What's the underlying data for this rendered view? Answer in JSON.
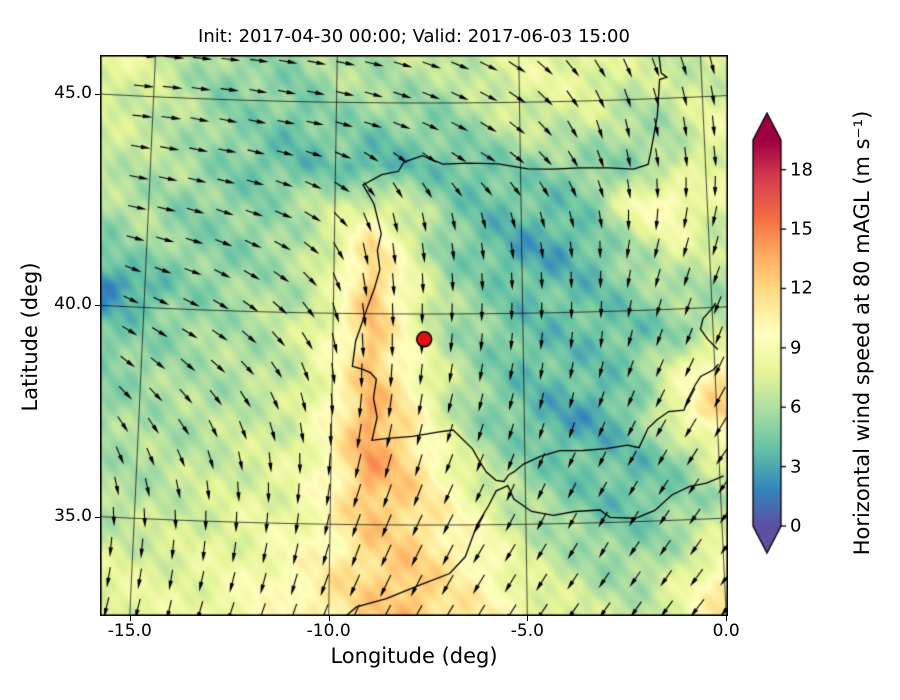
{
  "chart_data": {
    "type": "heatmap",
    "title": "Init: 2017-04-30 00:00; Valid: 2017-06-03 15:00",
    "xlabel": "Longitude (deg)",
    "ylabel": "Latitude (deg)",
    "x_ticks": [
      {
        "value": -15,
        "label": "-15.0"
      },
      {
        "value": -10,
        "label": "-10.0"
      },
      {
        "value": -5,
        "label": "-5.0"
      },
      {
        "value": 0,
        "label": "0.0"
      }
    ],
    "y_ticks": [
      {
        "value": 45,
        "label": "45.0"
      },
      {
        "value": 40,
        "label": "40.0"
      },
      {
        "value": 35,
        "label": "35.0"
      }
    ],
    "grid_lines": {
      "lons": [
        -15,
        -10,
        -5,
        0
      ],
      "lats": [
        35,
        40,
        45
      ]
    },
    "colorbar": {
      "label": "Horizontal wind speed at 80 mAGL (m s⁻¹)",
      "ticks": [
        0,
        3,
        6,
        9,
        12,
        15,
        18
      ],
      "vmin": 0,
      "vmax": 19.5,
      "extend": "both",
      "colormap": "Spectral_r",
      "colormap_stops": [
        "#5e4fa2",
        "#3288bd",
        "#66c2a5",
        "#abdda4",
        "#e6f598",
        "#ffffbf",
        "#fee08b",
        "#fdae61",
        "#f46d43",
        "#d53e4f",
        "#9e0142"
      ],
      "under_color": "#5e4fa2",
      "over_color": "#9e0142"
    },
    "lon_range": [
      -16.2,
      0.1
    ],
    "lat_range": [
      32.8,
      46.1
    ],
    "grid_lons": [
      -16,
      -15,
      -14,
      -13,
      -12,
      -11,
      -10,
      -9,
      -8,
      -7,
      -6,
      -5,
      -4,
      -3,
      -2,
      -1,
      0
    ],
    "grid_lats": [
      46.5,
      45.5,
      44.5,
      43.5,
      42.5,
      41.5,
      40.5,
      39.5,
      38.5,
      37.5,
      36.5,
      35.5,
      34.5,
      33.5,
      32.5
    ],
    "wind_speed": [
      [
        9,
        8,
        7,
        6,
        6,
        6,
        6,
        6,
        7,
        7,
        7,
        8,
        8,
        8,
        8,
        7,
        7
      ],
      [
        8,
        7,
        6,
        5,
        5,
        5,
        6,
        6,
        6,
        6,
        7,
        8,
        8,
        8,
        7,
        7,
        7
      ],
      [
        7,
        7,
        6,
        5,
        5,
        4,
        5,
        5,
        5,
        5,
        6,
        7,
        7,
        7,
        6,
        6,
        8
      ],
      [
        7,
        6,
        6,
        5,
        4,
        4,
        4,
        3,
        4,
        4,
        4,
        5,
        5,
        5,
        5,
        6,
        8
      ],
      [
        6,
        6,
        5,
        5,
        5,
        6,
        7,
        8,
        7,
        5,
        4,
        4,
        4,
        5,
        9,
        10,
        8
      ],
      [
        5,
        6,
        5,
        5,
        5,
        6,
        8,
        12,
        8,
        5,
        4,
        3,
        3,
        4,
        6,
        8,
        7
      ],
      [
        2,
        3,
        5,
        5,
        6,
        6,
        8,
        13,
        9,
        6,
        5,
        4,
        4,
        4,
        5,
        6,
        6
      ],
      [
        4,
        5,
        5,
        6,
        6,
        7,
        9,
        13,
        9,
        6,
        5,
        4,
        4,
        4,
        4,
        5,
        6
      ],
      [
        5,
        5,
        6,
        6,
        6,
        7,
        9,
        13,
        10,
        7,
        5,
        4,
        4,
        4,
        5,
        8,
        11
      ],
      [
        5,
        6,
        6,
        6,
        7,
        7,
        10,
        14,
        11,
        7,
        5,
        4,
        3,
        3,
        5,
        9,
        12
      ],
      [
        6,
        6,
        6,
        7,
        7,
        8,
        10,
        14,
        12,
        9,
        6,
        5,
        4,
        4,
        4,
        5,
        8
      ],
      [
        6,
        6,
        7,
        7,
        8,
        8,
        10,
        13,
        12,
        10,
        8,
        6,
        5,
        4,
        4,
        5,
        6
      ],
      [
        7,
        7,
        7,
        8,
        8,
        9,
        10,
        12,
        12,
        11,
        9,
        7,
        6,
        5,
        5,
        6,
        8
      ],
      [
        8,
        8,
        8,
        8,
        9,
        10,
        11,
        12,
        13,
        11,
        10,
        8,
        7,
        6,
        6,
        8,
        11
      ],
      [
        8,
        8,
        8,
        9,
        9,
        10,
        11,
        12,
        13,
        12,
        11,
        9,
        8,
        7,
        7,
        9,
        12
      ]
    ],
    "wind_u": [
      [
        1,
        1,
        1,
        1,
        1,
        1,
        1,
        1,
        1,
        0.9,
        0.8,
        0.7,
        0.6,
        0.5,
        0.4,
        0.3,
        0.3
      ],
      [
        1,
        1,
        1,
        1,
        1,
        1,
        1,
        1,
        0.9,
        0.9,
        0.8,
        0.7,
        0.5,
        0.4,
        0.3,
        0.3,
        0.2
      ],
      [
        1,
        1,
        1,
        1,
        1,
        1,
        1,
        0.9,
        0.9,
        0.8,
        0.8,
        0.7,
        0.5,
        0.3,
        0.2,
        0.2,
        0.1
      ],
      [
        1,
        1,
        1,
        1,
        1,
        0.9,
        0.8,
        0.6,
        0.6,
        0.7,
        0.8,
        0.7,
        0.6,
        0.4,
        0.2,
        0.1,
        0.1
      ],
      [
        1,
        1,
        1,
        0.9,
        0.9,
        0.8,
        0.6,
        0.3,
        0.2,
        0.2,
        0.3,
        0.3,
        0.3,
        0.2,
        0,
        -0.1,
        -0.2
      ],
      [
        1,
        1,
        1,
        0.9,
        0.8,
        0.7,
        0.4,
        0.1,
        0.1,
        0.1,
        0.1,
        0.1,
        0.1,
        0,
        -0.2,
        -0.3,
        -0.3
      ],
      [
        0.9,
        0.9,
        0.9,
        0.8,
        0.7,
        0.6,
        0.3,
        0.1,
        0,
        0,
        0,
        0,
        0,
        0,
        -0.2,
        -0.3,
        -0.4
      ],
      [
        0.8,
        0.8,
        0.8,
        0.7,
        0.6,
        0.5,
        0.2,
        0,
        0,
        -0.1,
        -0.1,
        -0.1,
        -0.1,
        -0.1,
        -0.3,
        -0.4,
        -0.4
      ],
      [
        0.7,
        0.7,
        0.6,
        0.6,
        0.5,
        0.3,
        0.1,
        -0.1,
        -0.1,
        -0.2,
        -0.2,
        -0.2,
        -0.2,
        -0.3,
        -0.4,
        -0.5,
        -0.5
      ],
      [
        0.5,
        0.5,
        0.5,
        0.4,
        0.3,
        0.2,
        0,
        -0.2,
        -0.2,
        -0.3,
        -0.3,
        -0.3,
        -0.3,
        -0.4,
        -0.5,
        -0.6,
        -0.6
      ],
      [
        0.3,
        0.3,
        0.3,
        0.2,
        0.1,
        0,
        -0.1,
        -0.3,
        -0.3,
        -0.4,
        -0.4,
        -0.4,
        -0.5,
        -0.5,
        -0.6,
        -0.6,
        -0.7
      ],
      [
        0.1,
        0.1,
        0.1,
        0,
        0,
        -0.1,
        -0.2,
        -0.4,
        -0.4,
        -0.5,
        -0.5,
        -0.5,
        -0.5,
        -0.6,
        -0.6,
        -0.7,
        -0.7
      ],
      [
        -0.1,
        -0.1,
        -0.1,
        -0.1,
        -0.2,
        -0.2,
        -0.3,
        -0.4,
        -0.5,
        -0.5,
        -0.6,
        -0.6,
        -0.6,
        -0.6,
        -0.7,
        -0.7,
        -0.7
      ],
      [
        -0.2,
        -0.2,
        -0.2,
        -0.3,
        -0.3,
        -0.3,
        -0.4,
        -0.5,
        -0.5,
        -0.6,
        -0.6,
        -0.6,
        -0.7,
        -0.7,
        -0.7,
        -0.7,
        -0.8
      ],
      [
        -0.3,
        -0.3,
        -0.3,
        -0.3,
        -0.4,
        -0.4,
        -0.4,
        -0.5,
        -0.6,
        -0.6,
        -0.6,
        -0.7,
        -0.7,
        -0.7,
        -0.7,
        -0.8,
        -0.8
      ]
    ],
    "wind_v": [
      [
        -0.1,
        -0.1,
        -0.1,
        -0.1,
        -0.1,
        -0.2,
        -0.2,
        -0.2,
        -0.3,
        -0.3,
        -0.4,
        -0.5,
        -0.6,
        -0.7,
        -0.8,
        -0.9,
        -0.9
      ],
      [
        -0.1,
        -0.1,
        -0.1,
        -0.1,
        -0.2,
        -0.2,
        -0.2,
        -0.3,
        -0.3,
        -0.4,
        -0.4,
        -0.5,
        -0.6,
        -0.7,
        -0.8,
        -0.9,
        -1
      ],
      [
        -0.1,
        -0.1,
        -0.2,
        -0.2,
        -0.2,
        -0.2,
        -0.3,
        -0.3,
        -0.4,
        -0.4,
        -0.5,
        -0.6,
        -0.7,
        -0.9,
        -1,
        -1,
        -1
      ],
      [
        -0.2,
        -0.2,
        -0.2,
        -0.2,
        -0.3,
        -0.3,
        -0.4,
        -0.6,
        -0.6,
        -0.5,
        -0.5,
        -0.6,
        -0.8,
        -1,
        -1,
        -1,
        -1
      ],
      [
        -0.2,
        -0.2,
        -0.3,
        -0.3,
        -0.3,
        -0.4,
        -0.6,
        -0.9,
        -1,
        -1,
        -1,
        -1,
        -1,
        -1,
        -1,
        -1,
        -1
      ],
      [
        -0.3,
        -0.3,
        -0.3,
        -0.4,
        -0.4,
        -0.5,
        -0.8,
        -1,
        -1,
        -1,
        -1,
        -1,
        -1,
        -1,
        -1,
        -1,
        -1
      ],
      [
        -0.4,
        -0.4,
        -0.4,
        -0.5,
        -0.5,
        -0.6,
        -0.9,
        -1,
        -1,
        -1,
        -1,
        -1,
        -1,
        -1,
        -1,
        -1,
        -1
      ],
      [
        -0.5,
        -0.5,
        -0.5,
        -0.5,
        -0.6,
        -0.7,
        -0.9,
        -1,
        -1,
        -1,
        -1,
        -1,
        -1,
        -1,
        -1,
        -1,
        -1
      ],
      [
        -0.6,
        -0.6,
        -0.6,
        -0.6,
        -0.7,
        -0.8,
        -1,
        -1,
        -1,
        -1,
        -1,
        -1,
        -1,
        -1,
        -1,
        -1,
        -1
      ],
      [
        -0.7,
        -0.7,
        -0.7,
        -0.8,
        -0.8,
        -0.9,
        -1,
        -1,
        -1,
        -1,
        -1,
        -1,
        -1,
        -1,
        -1,
        -1,
        -1
      ],
      [
        -0.8,
        -0.8,
        -0.8,
        -0.9,
        -0.9,
        -1,
        -1,
        -1,
        -1,
        -1,
        -1,
        -1,
        -1,
        -1,
        -1,
        -1,
        -1
      ],
      [
        -1,
        -1,
        -1,
        -1,
        -1,
        -1,
        -1,
        -1,
        -1,
        -1,
        -1,
        -1,
        -1,
        -1,
        -1,
        -1,
        -1
      ],
      [
        -1,
        -1,
        -1,
        -1,
        -1,
        -1,
        -1,
        -1,
        -1,
        -1,
        -1,
        -1,
        -1,
        -1,
        -1,
        -1,
        -1
      ],
      [
        -1,
        -1,
        -1,
        -1,
        -1,
        -1,
        -1,
        -1,
        -1,
        -1,
        -1,
        -1,
        -1,
        -1,
        -1,
        -1,
        -1
      ],
      [
        -1,
        -1,
        -1,
        -1,
        -1,
        -1,
        -1,
        -1,
        -1,
        -1,
        -1,
        -1,
        -1,
        -1,
        -1,
        -1,
        -1
      ]
    ],
    "noise_amplitude": 1.3,
    "marker": {
      "lon": -7.6,
      "lat": 39.4,
      "color": "#e01111"
    },
    "coastlines": [
      [
        [
          -1.15,
          46.1
        ],
        [
          -1.1,
          45.6
        ],
        [
          -0.95,
          45.5
        ],
        [
          -1.15,
          45.45
        ],
        [
          -1.25,
          44.6
        ],
        [
          -1.45,
          43.8
        ],
        [
          -1.55,
          43.45
        ],
        [
          -1.95,
          43.35
        ],
        [
          -2.6,
          43.4
        ],
        [
          -3.4,
          43.42
        ],
        [
          -4.1,
          43.4
        ],
        [
          -4.8,
          43.42
        ],
        [
          -5.6,
          43.55
        ],
        [
          -6.4,
          43.57
        ],
        [
          -7.1,
          43.55
        ],
        [
          -7.65,
          43.75
        ],
        [
          -8.15,
          43.6
        ],
        [
          -8.3,
          43.38
        ],
        [
          -8.75,
          43.3
        ],
        [
          -9.25,
          43.05
        ],
        [
          -8.95,
          42.6
        ],
        [
          -8.85,
          42.25
        ],
        [
          -8.75,
          41.9
        ],
        [
          -8.85,
          41.5
        ],
        [
          -8.78,
          41.05
        ],
        [
          -8.92,
          40.6
        ],
        [
          -9.1,
          40.15
        ],
        [
          -9.4,
          39.35
        ],
        [
          -9.48,
          38.75
        ],
        [
          -9.2,
          38.68
        ],
        [
          -9.0,
          38.6
        ],
        [
          -8.85,
          38.45
        ],
        [
          -8.92,
          38.0
        ],
        [
          -8.82,
          37.55
        ],
        [
          -8.95,
          37.0
        ],
        [
          -8.55,
          37.05
        ],
        [
          -7.9,
          37.1
        ],
        [
          -7.25,
          37.2
        ],
        [
          -6.85,
          37.25
        ],
        [
          -6.35,
          36.8
        ],
        [
          -6.2,
          36.55
        ],
        [
          -6.0,
          36.25
        ],
        [
          -5.75,
          36.05
        ],
        [
          -5.55,
          36.02
        ],
        [
          -5.42,
          36.18
        ],
        [
          -5.28,
          36.25
        ],
        [
          -5.05,
          36.42
        ],
        [
          -4.6,
          36.6
        ],
        [
          -4.1,
          36.73
        ],
        [
          -3.5,
          36.72
        ],
        [
          -2.9,
          36.75
        ],
        [
          -2.35,
          36.82
        ],
        [
          -2.05,
          36.75
        ],
        [
          -1.8,
          37.2
        ],
        [
          -1.55,
          37.4
        ],
        [
          -1.25,
          37.58
        ],
        [
          -0.85,
          37.6
        ],
        [
          -0.72,
          37.88
        ],
        [
          -0.52,
          38.2
        ],
        [
          -0.38,
          38.38
        ],
        [
          -0.05,
          38.52
        ],
        [
          0.1,
          38.65
        ]
      ],
      [
        [
          0.1,
          39.0
        ],
        [
          -0.15,
          39.25
        ],
        [
          -0.33,
          39.5
        ],
        [
          -0.25,
          39.75
        ],
        [
          0.0,
          39.98
        ],
        [
          0.1,
          40.1
        ]
      ],
      [
        [
          -9.85,
          32.6
        ],
        [
          -9.3,
          33.05
        ],
        [
          -8.55,
          33.25
        ],
        [
          -7.65,
          33.6
        ],
        [
          -6.95,
          33.85
        ],
        [
          -6.55,
          34.25
        ],
        [
          -6.25,
          35.0
        ],
        [
          -5.95,
          35.45
        ],
        [
          -5.75,
          35.8
        ],
        [
          -5.45,
          35.92
        ],
        [
          -5.3,
          35.6
        ],
        [
          -4.85,
          35.3
        ],
        [
          -4.3,
          35.2
        ],
        [
          -3.75,
          35.28
        ],
        [
          -3.1,
          35.3
        ],
        [
          -2.85,
          35.12
        ],
        [
          -2.2,
          35.08
        ],
        [
          -1.7,
          35.25
        ],
        [
          -1.25,
          35.6
        ],
        [
          -0.8,
          35.78
        ],
        [
          -0.35,
          35.85
        ],
        [
          0.1,
          36.0
        ]
      ]
    ]
  }
}
